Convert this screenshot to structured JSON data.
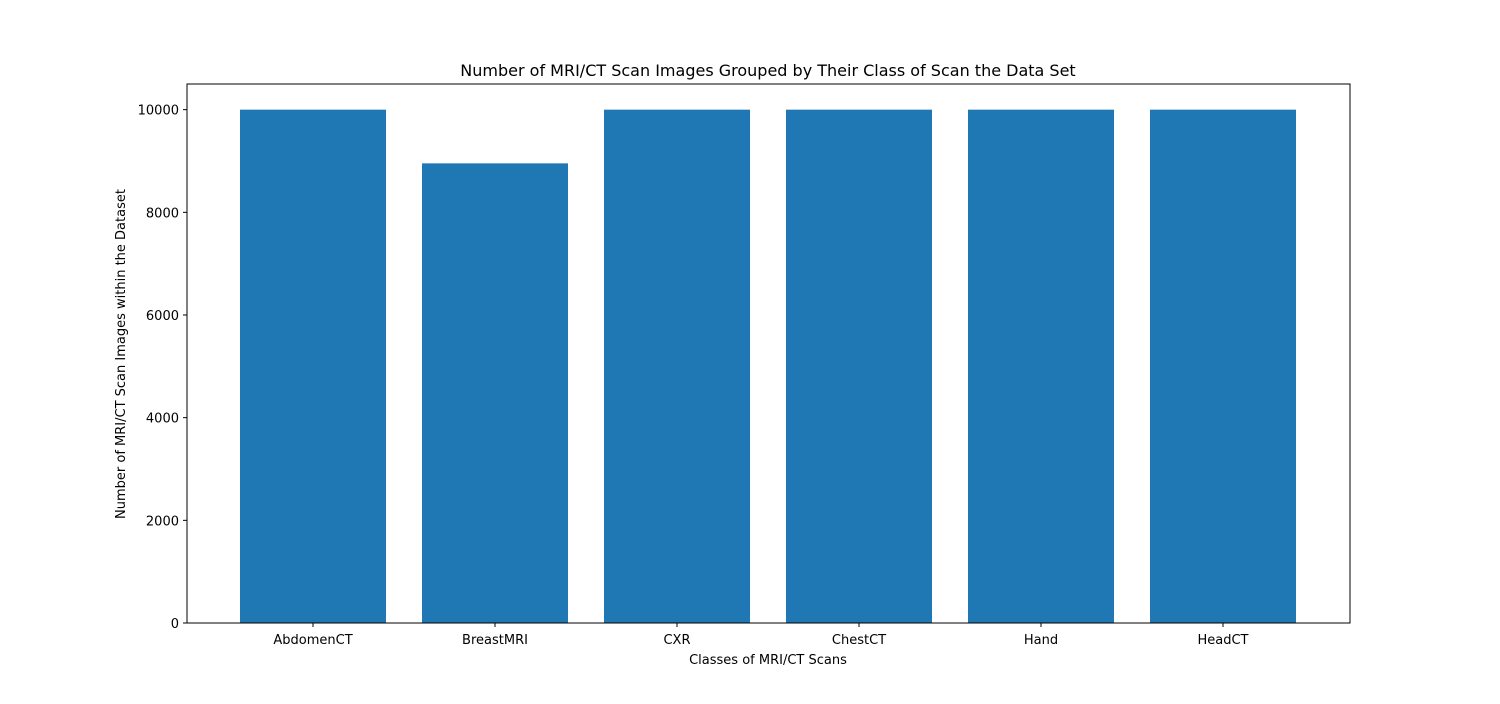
{
  "chart_data": {
    "type": "bar",
    "title": "Number of MRI/CT Scan Images Grouped by Their Class of Scan the Data Set",
    "xlabel": "Classes of MRI/CT Scans",
    "ylabel": "Number of MRI/CT Scan Images within the Dataset",
    "categories": [
      "AbdomenCT",
      "BreastMRI",
      "CXR",
      "ChestCT",
      "Hand",
      "HeadCT"
    ],
    "values": [
      10000,
      8954,
      10000,
      10000,
      10000,
      10000
    ],
    "ylim": [
      0,
      10500
    ],
    "yticks": [
      0,
      2000,
      4000,
      6000,
      8000,
      10000
    ],
    "ytick_labels": [
      "0",
      "2000",
      "4000",
      "6000",
      "8000",
      "10000"
    ],
    "grid": false,
    "legend": "none",
    "bar_color": "#1f77b4"
  }
}
